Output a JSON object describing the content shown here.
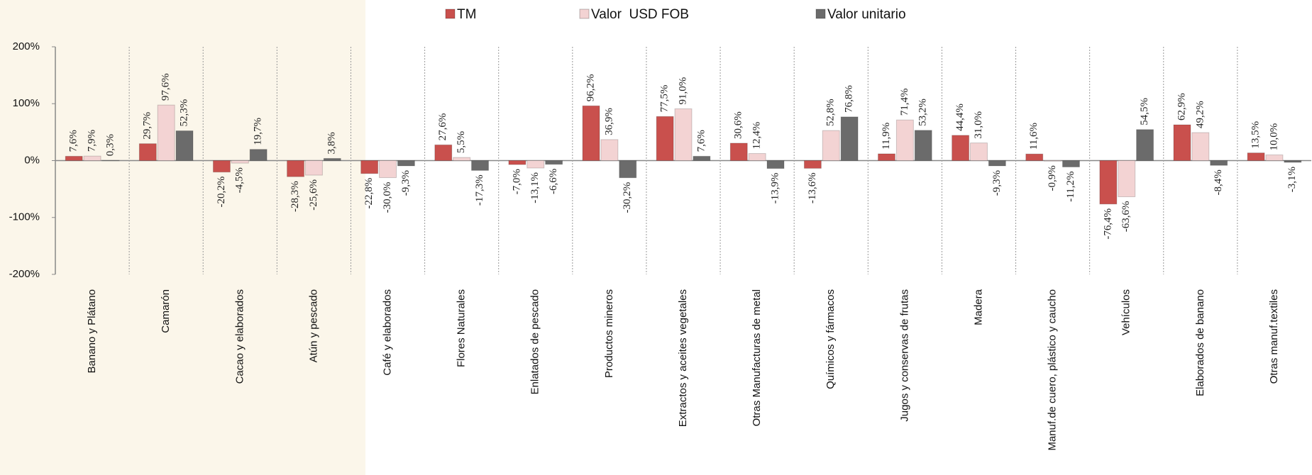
{
  "chart_data": {
    "type": "bar",
    "categories": [
      "Banano y Plátano",
      "Camarón",
      "Cacao y elaborados",
      "Atún y pescado",
      "Café y elaborados",
      "Flores Naturales",
      "Enlatados de pescado",
      "Productos mineros",
      "Extractos y aceites vegetales",
      "Otras Manufacturas de metal",
      "Químicos y fármacos",
      "Jugos y conservas de frutas",
      "Madera",
      "Manuf.de cuero, plástico y caucho",
      "Vehículos",
      "Elaborados de banano",
      "Otras manuf.textiles"
    ],
    "series": [
      {
        "name": "TM",
        "color": "#c9504d",
        "values": [
          7.6,
          29.7,
          -20.2,
          -28.3,
          -22.8,
          27.6,
          -7.0,
          96.2,
          77.5,
          30.6,
          -13.6,
          11.9,
          44.4,
          11.6,
          -76.4,
          62.9,
          13.5
        ],
        "value_labels": [
          "7,6%",
          "29,7%",
          "-20,2%",
          "-28,3%",
          "-22,8%",
          "27,6%",
          "-7,0%",
          "96,2%",
          "77,5%",
          "30,6%",
          "-13,6%",
          "11,9%",
          "44,4%",
          "11,6%",
          "-76,4%",
          "62,9%",
          "13,5%"
        ]
      },
      {
        "name": "Valor  USD FOB",
        "color": "#f3d3d3",
        "values": [
          7.9,
          97.6,
          -4.5,
          -25.6,
          -30.0,
          5.5,
          -13.1,
          36.9,
          91.0,
          12.4,
          52.8,
          71.4,
          31.0,
          -0.9,
          -63.6,
          49.2,
          10.0
        ],
        "value_labels": [
          "7,9%",
          "97,6%",
          "-4,5%",
          "-25,6%",
          "-30,0%",
          "5,5%",
          "-13,1%",
          "36,9%",
          "91,0%",
          "12,4%",
          "52,8%",
          "71,4%",
          "31,0%",
          "-0,9%",
          "-63,6%",
          "49,2%",
          "10,0%"
        ]
      },
      {
        "name": "Valor unitario",
        "color": "#6b6b6b",
        "values": [
          0.3,
          52.3,
          19.7,
          3.8,
          -9.3,
          -17.3,
          -6.6,
          -30.2,
          7.6,
          -13.9,
          76.8,
          53.2,
          -9.3,
          -11.2,
          54.5,
          -8.4,
          -3.1
        ],
        "value_labels": [
          "0,3%",
          "52,3%",
          "19,7%",
          "3,8%",
          "-9,3%",
          "-17,3%",
          "-6,6%",
          "-30,2%",
          "7,6%",
          "-13,9%",
          "76,8%",
          "53,2%",
          "-9,3%",
          "-11,2%",
          "54,5%",
          "-8,4%",
          "-3,1%"
        ]
      }
    ],
    "ylim": [
      -200,
      200
    ],
    "yticks": [
      {
        "value": 200,
        "label": "200%"
      },
      {
        "value": 100,
        "label": "100%"
      },
      {
        "value": 0,
        "label": "0%"
      },
      {
        "value": -100,
        "label": "-100%"
      },
      {
        "value": -200,
        "label": "-200%"
      }
    ]
  }
}
